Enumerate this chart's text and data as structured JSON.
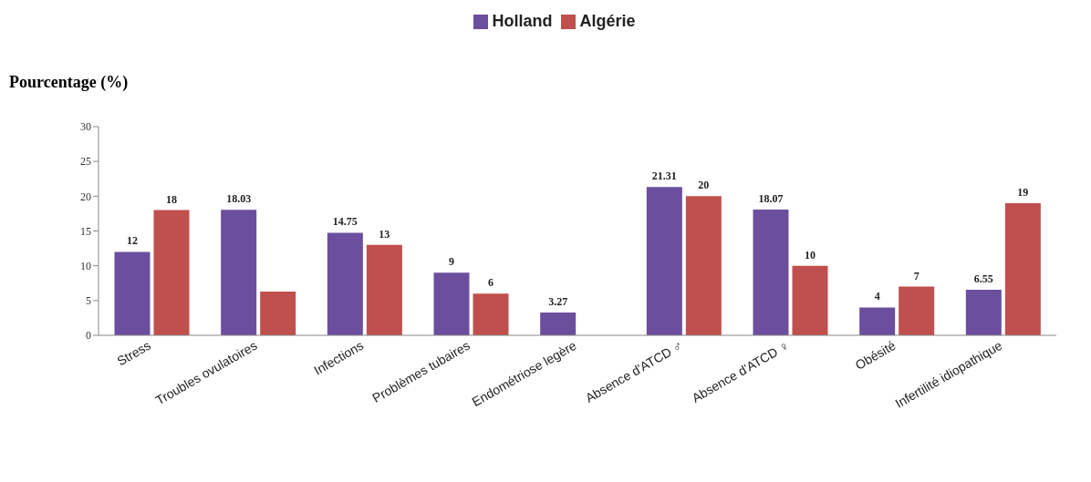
{
  "chart_data": {
    "type": "bar",
    "ylabel": "Pourcentage (%)",
    "categories": [
      "Stress",
      "Troubles ovulatoires",
      "Infections",
      "Problèmes tubaires",
      "Endométriose legère",
      "Absence d'ATCD ♂",
      "Absence d'ATCD ♀",
      "Obésité",
      "Infertilité idiopathique"
    ],
    "series": [
      {
        "name": "Holland",
        "color": "#6b4f9e",
        "values": [
          12,
          18.03,
          14.75,
          9,
          3.27,
          21.31,
          18.07,
          4,
          6.55
        ],
        "value_labels": [
          "12",
          "18.03",
          "14.75",
          "9",
          "3.27",
          "21.31",
          "18.07",
          "4",
          "6.55"
        ]
      },
      {
        "name": "Algérie",
        "color": "#c0504d",
        "values": [
          18,
          6.3,
          13,
          6,
          null,
          20,
          10,
          7,
          19
        ],
        "value_labels": [
          "18",
          null,
          "13",
          "6",
          null,
          "20",
          "10",
          "7",
          "19"
        ]
      }
    ],
    "ylim": [
      0,
      30
    ],
    "yticks": [
      0,
      5,
      10,
      15,
      20,
      25,
      30
    ],
    "grid": false,
    "legend": "top"
  }
}
